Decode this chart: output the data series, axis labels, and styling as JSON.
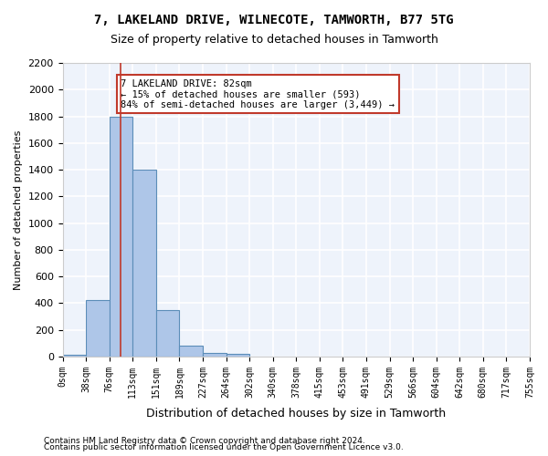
{
  "title": "7, LAKELAND DRIVE, WILNECOTE, TAMWORTH, B77 5TG",
  "subtitle": "Size of property relative to detached houses in Tamworth",
  "xlabel": "Distribution of detached houses by size in Tamworth",
  "ylabel": "Number of detached properties",
  "bar_color": "#aec6e8",
  "bar_edge_color": "#5b8db8",
  "background_color": "#eef3fb",
  "grid_color": "#ffffff",
  "bins": [
    "0sqm",
    "38sqm",
    "76sqm",
    "113sqm",
    "151sqm",
    "189sqm",
    "227sqm",
    "264sqm",
    "302sqm",
    "340sqm",
    "378sqm",
    "415sqm",
    "453sqm",
    "491sqm",
    "529sqm",
    "566sqm",
    "604sqm",
    "642sqm",
    "680sqm",
    "717sqm",
    "755sqm"
  ],
  "values": [
    15,
    420,
    1800,
    1400,
    350,
    80,
    30,
    18,
    0,
    0,
    0,
    0,
    0,
    0,
    0,
    0,
    0,
    0,
    0,
    0
  ],
  "ylim": [
    0,
    2200
  ],
  "yticks": [
    0,
    200,
    400,
    600,
    800,
    1000,
    1200,
    1400,
    1600,
    1800,
    2000,
    2200
  ],
  "property_size": 82,
  "property_label": "7 LAKELAND DRIVE: 82sqm",
  "annotation_line1": "← 15% of detached houses are smaller (593)",
  "annotation_line2": "84% of semi-detached houses are larger (3,449) →",
  "vline_x_bin": 2,
  "footer1": "Contains HM Land Registry data © Crown copyright and database right 2024.",
  "footer2": "Contains public sector information licensed under the Open Government Licence v3.0."
}
